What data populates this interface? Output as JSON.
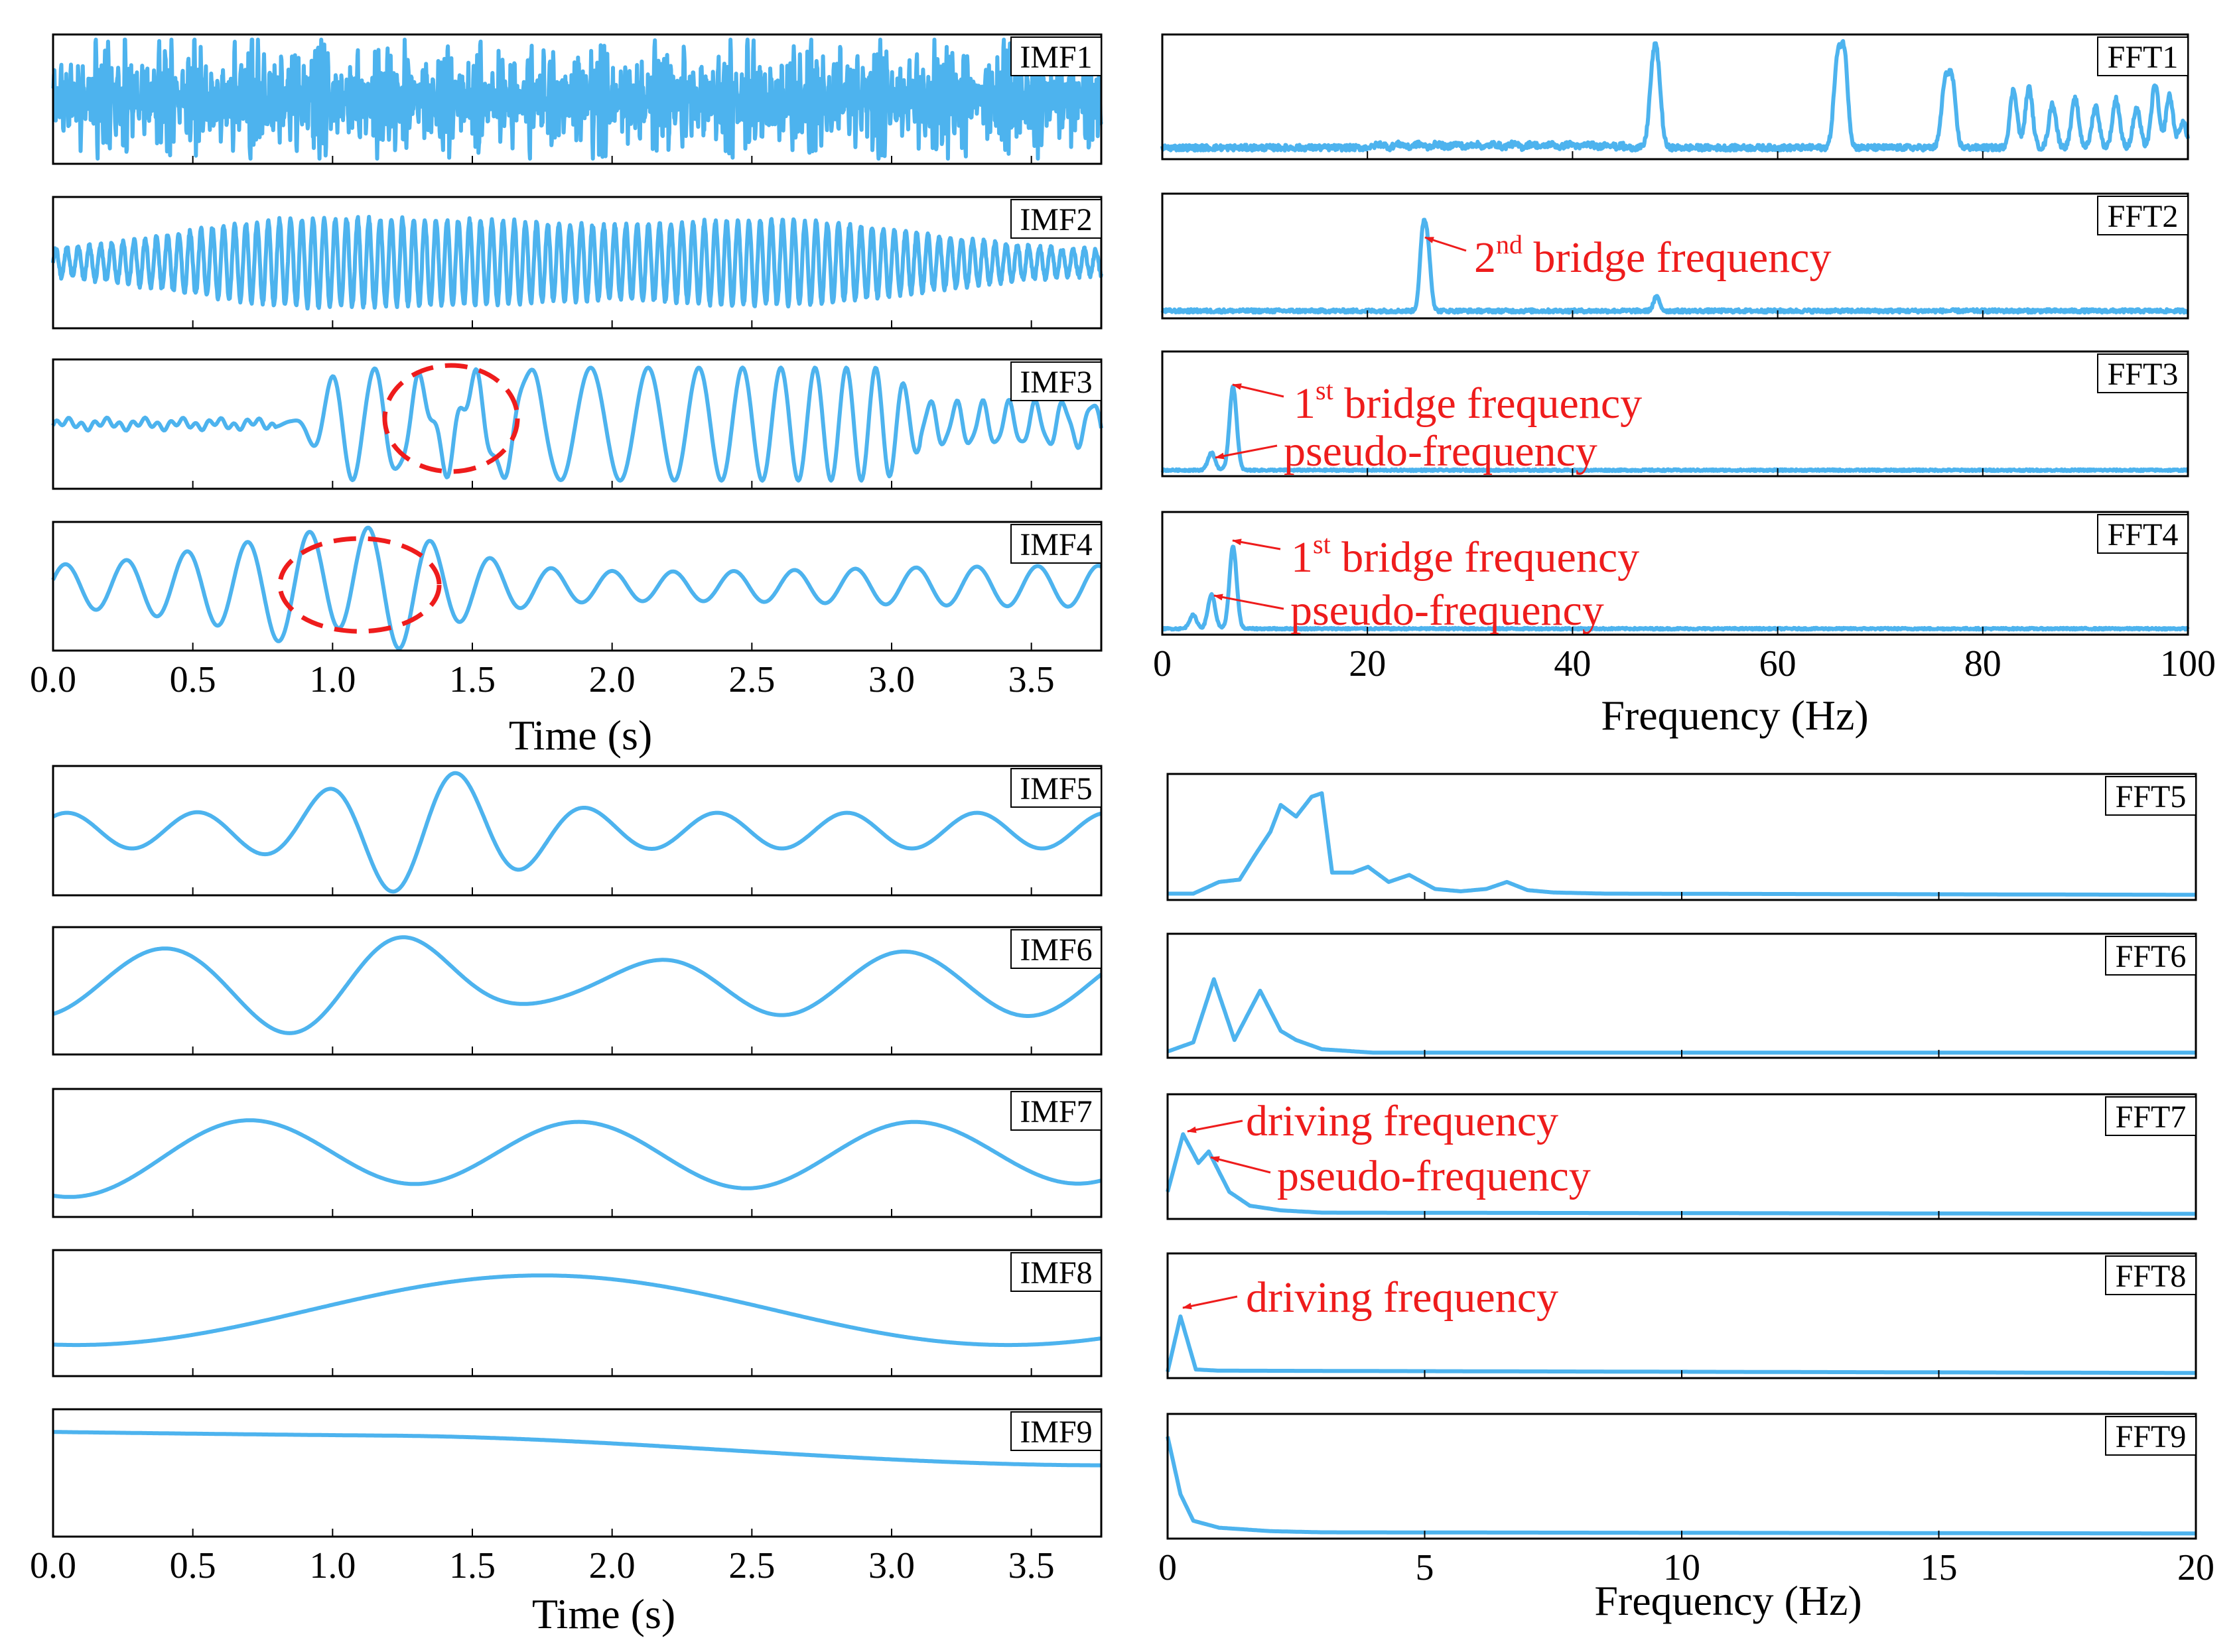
{
  "colors": {
    "signal": "#4db3ee",
    "annotation": "#ee1c1c",
    "frame": "#000000"
  },
  "chart_data": [
    {
      "type": "line",
      "group": "time-domain IMF1-IMF4",
      "panels": [
        "IMF1",
        "IMF2",
        "IMF3",
        "IMF4"
      ],
      "xlabel": "Time (s)",
      "xlim": [
        0,
        3.75
      ],
      "xticks": [
        "0.0",
        "0.5",
        "1.0",
        "1.5",
        "2.0",
        "2.5",
        "3.0",
        "3.5"
      ],
      "series": [
        {
          "name": "IMF1",
          "description_freqs_hz": [
            48,
            66,
            77,
            84,
            88,
            93,
            97
          ]
        },
        {
          "name": "IMF2",
          "description_freqs_hz": [
            25
          ]
        },
        {
          "name": "IMF3",
          "description_freqs_hz": [
            6.8
          ]
        },
        {
          "name": "IMF4",
          "description_freqs_hz": [
            4.5
          ]
        }
      ]
    },
    {
      "type": "line",
      "group": "frequency-domain FFT1-FFT4",
      "panels": [
        "FFT1",
        "FFT2",
        "FFT3",
        "FFT4"
      ],
      "xlabel": "Frequency (Hz)",
      "xlim": [
        0,
        100
      ],
      "xticks": [
        "0",
        "20",
        "40",
        "60",
        "80",
        "100"
      ],
      "series": [
        {
          "name": "FFT1",
          "peaks": [
            {
              "f": 47.8,
              "a": 0.55
            },
            {
              "f": 48.3,
              "a": 0.6
            },
            {
              "f": 65.8,
              "a": 0.7
            },
            {
              "f": 66.5,
              "a": 0.78
            },
            {
              "f": 76.3,
              "a": 0.52
            },
            {
              "f": 77.0,
              "a": 0.56
            },
            {
              "f": 83.0,
              "a": 0.5
            },
            {
              "f": 84.5,
              "a": 0.52
            },
            {
              "f": 86.8,
              "a": 0.38
            },
            {
              "f": 89.0,
              "a": 0.42
            },
            {
              "f": 91.0,
              "a": 0.36
            },
            {
              "f": 93.0,
              "a": 0.42
            },
            {
              "f": 95.0,
              "a": 0.34
            },
            {
              "f": 96.8,
              "a": 0.55
            },
            {
              "f": 98.2,
              "a": 0.45
            },
            {
              "f": 99.5,
              "a": 0.22
            }
          ]
        },
        {
          "name": "FFT2",
          "peaks": [
            {
              "f": 25.4,
              "a": 0.62
            },
            {
              "f": 25.9,
              "a": 0.48
            },
            {
              "f": 48.2,
              "a": 0.12
            }
          ]
        },
        {
          "name": "FFT3",
          "peaks": [
            {
              "f": 6.9,
              "a": 0.72
            },
            {
              "f": 4.8,
              "a": 0.15
            }
          ]
        },
        {
          "name": "FFT4",
          "peaks": [
            {
              "f": 6.9,
              "a": 0.72
            },
            {
              "f": 4.8,
              "a": 0.3
            },
            {
              "f": 3.0,
              "a": 0.12
            }
          ]
        }
      ]
    },
    {
      "type": "line",
      "group": "time-domain IMF5-IMF9",
      "panels": [
        "IMF5",
        "IMF6",
        "IMF7",
        "IMF8",
        "IMF9"
      ],
      "xlabel": "Time (s)",
      "xlim": [
        0,
        3.75
      ],
      "xticks": [
        "0.0",
        "0.5",
        "1.0",
        "1.5",
        "2.0",
        "2.5",
        "3.0",
        "3.5"
      ]
    },
    {
      "type": "line",
      "group": "frequency-domain FFT5-FFT9",
      "panels": [
        "FFT5",
        "FFT6",
        "FFT7",
        "FFT8",
        "FFT9"
      ],
      "xlabel": "Frequency (Hz)",
      "xlim": [
        0,
        20
      ],
      "xticks": [
        "0",
        "5",
        "10",
        "15",
        "20"
      ],
      "series": [
        {
          "name": "FFT5",
          "points": [
            [
              0,
              0.02
            ],
            [
              0.5,
              0.02
            ],
            [
              1,
              0.12
            ],
            [
              1.4,
              0.14
            ],
            [
              1.7,
              0.35
            ],
            [
              2.0,
              0.55
            ],
            [
              2.2,
              0.78
            ],
            [
              2.5,
              0.68
            ],
            [
              2.8,
              0.85
            ],
            [
              3.0,
              0.88
            ],
            [
              3.2,
              0.2
            ],
            [
              3.6,
              0.2
            ],
            [
              3.9,
              0.25
            ],
            [
              4.3,
              0.12
            ],
            [
              4.7,
              0.18
            ],
            [
              5.2,
              0.06
            ],
            [
              5.7,
              0.04
            ],
            [
              6.2,
              0.06
            ],
            [
              6.6,
              0.12
            ],
            [
              7.0,
              0.05
            ],
            [
              7.5,
              0.03
            ],
            [
              8.5,
              0.02
            ],
            [
              20,
              0.01
            ]
          ]
        },
        {
          "name": "FFT6",
          "points": [
            [
              0,
              0.02
            ],
            [
              0.5,
              0.1
            ],
            [
              0.9,
              0.65
            ],
            [
              1.3,
              0.12
            ],
            [
              1.8,
              0.55
            ],
            [
              2.2,
              0.2
            ],
            [
              2.5,
              0.12
            ],
            [
              3,
              0.04
            ],
            [
              4,
              0.01
            ],
            [
              20,
              0.01
            ]
          ]
        },
        {
          "name": "FFT7",
          "points": [
            [
              0,
              0.2
            ],
            [
              0.3,
              0.7
            ],
            [
              0.6,
              0.45
            ],
            [
              0.8,
              0.55
            ],
            [
              1.2,
              0.2
            ],
            [
              1.6,
              0.08
            ],
            [
              2.2,
              0.04
            ],
            [
              3,
              0.02
            ],
            [
              20,
              0.01
            ]
          ]
        },
        {
          "name": "FFT8",
          "points": [
            [
              0,
              0.02
            ],
            [
              0.25,
              0.5
            ],
            [
              0.55,
              0.04
            ],
            [
              1.0,
              0.03
            ],
            [
              20,
              0.01
            ]
          ]
        },
        {
          "name": "FFT9",
          "points": [
            [
              0,
              0.85
            ],
            [
              0.25,
              0.35
            ],
            [
              0.5,
              0.12
            ],
            [
              1,
              0.06
            ],
            [
              2,
              0.03
            ],
            [
              3,
              0.02
            ],
            [
              20,
              0.01
            ]
          ]
        }
      ]
    }
  ],
  "labels": {
    "imf": [
      "IMF1",
      "IMF2",
      "IMF3",
      "IMF4",
      "IMF5",
      "IMF6",
      "IMF7",
      "IMF8",
      "IMF9"
    ],
    "fft": [
      "FFT1",
      "FFT2",
      "FFT3",
      "FFT4",
      "FFT5",
      "FFT6",
      "FFT7",
      "FFT8",
      "FFT9"
    ],
    "time_axis": "Time (s)",
    "freq_axis": "Frequency (Hz)",
    "time_ticks": [
      "0.0",
      "0.5",
      "1.0",
      "1.5",
      "2.0",
      "2.5",
      "3.0",
      "3.5"
    ],
    "freq_ticks_top": [
      "0",
      "20",
      "40",
      "60",
      "80",
      "100"
    ],
    "freq_ticks_bottom": [
      "0",
      "5",
      "10",
      "15",
      "20"
    ]
  },
  "annotations": {
    "fft2_bridge": {
      "num": "2",
      "sup": "nd",
      "text": " bridge frequency"
    },
    "fft3_bridge": {
      "num": "1",
      "sup": "st",
      "text": " bridge frequency"
    },
    "fft3_pseudo": "pseudo-frequency",
    "fft4_bridge": {
      "num": "1",
      "sup": "st",
      "text": " bridge frequency"
    },
    "fft4_pseudo": "pseudo-frequency",
    "fft7_driving": "driving frequency",
    "fft7_pseudo": "pseudo-frequency",
    "fft8_driving": "driving frequency"
  }
}
